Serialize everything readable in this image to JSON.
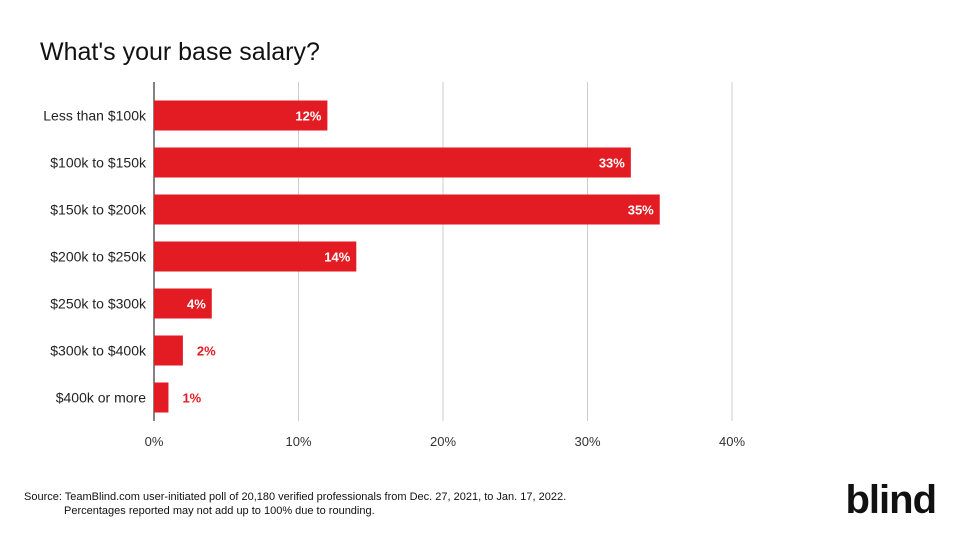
{
  "chart_data": {
    "type": "bar",
    "orientation": "horizontal",
    "title": "What's your base salary?",
    "categories": [
      "Less than $100k",
      "$100k to $150k",
      "$150k to $200k",
      "$200k to $250k",
      "$250k to $300k",
      "$300k to $400k",
      "$400k or more"
    ],
    "values": [
      12,
      33,
      35,
      14,
      4,
      2,
      1
    ],
    "data_labels": [
      "12%",
      "33%",
      "35%",
      "14%",
      "4%",
      "2%",
      "1%"
    ],
    "xlim": [
      0,
      40
    ],
    "x_ticks": [
      0,
      10,
      20,
      30,
      40
    ],
    "x_tick_labels": [
      "0%",
      "10%",
      "20%",
      "30%",
      "40%"
    ],
    "grid": true,
    "bar_color": "#e31b23"
  },
  "footer": {
    "source_line1": "Source: TeamBlind.com user-initiated poll of 20,180 verified professionals from Dec. 27, 2021, to Jan. 17, 2022.",
    "source_line2": "Percentages reported may not add up to 100% due to rounding."
  },
  "brand": {
    "logo_text": "blind"
  }
}
